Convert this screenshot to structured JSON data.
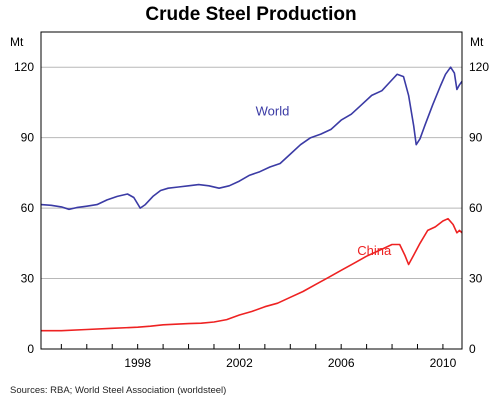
{
  "chart_data": {
    "type": "line",
    "title": "Crude Steel Production",
    "ylabel_left": "Mt",
    "ylabel_right": "Mt",
    "ylim": [
      0,
      135
    ],
    "yticks": [
      0,
      30,
      60,
      90,
      120
    ],
    "xlim": [
      1994.2,
      2010.75
    ],
    "xticks": [
      1998,
      2002,
      2006,
      2010
    ],
    "grid": "horizontal",
    "series": [
      {
        "name": "World",
        "color": "#3b3ba5",
        "points": [
          [
            1994.2,
            61.5
          ],
          [
            1994.6,
            61.2
          ],
          [
            1995.0,
            60.5
          ],
          [
            1995.3,
            59.5
          ],
          [
            1995.6,
            60.2
          ],
          [
            1996.0,
            60.8
          ],
          [
            1996.4,
            61.5
          ],
          [
            1996.8,
            63.5
          ],
          [
            1997.2,
            65.0
          ],
          [
            1997.6,
            66.0
          ],
          [
            1997.85,
            64.5
          ],
          [
            1998.1,
            60.0
          ],
          [
            1998.3,
            61.5
          ],
          [
            1998.6,
            65.0
          ],
          [
            1998.9,
            67.5
          ],
          [
            1999.2,
            68.5
          ],
          [
            1999.6,
            69.0
          ],
          [
            2000.0,
            69.5
          ],
          [
            2000.4,
            70.0
          ],
          [
            2000.8,
            69.5
          ],
          [
            2001.2,
            68.5
          ],
          [
            2001.6,
            69.5
          ],
          [
            2002.0,
            71.5
          ],
          [
            2002.4,
            74.0
          ],
          [
            2002.8,
            75.5
          ],
          [
            2003.2,
            77.5
          ],
          [
            2003.6,
            79.0
          ],
          [
            2004.0,
            83.0
          ],
          [
            2004.4,
            87.0
          ],
          [
            2004.8,
            90.0
          ],
          [
            2005.2,
            91.5
          ],
          [
            2005.6,
            93.5
          ],
          [
            2006.0,
            97.5
          ],
          [
            2006.4,
            100.0
          ],
          [
            2006.8,
            104.0
          ],
          [
            2007.2,
            108.0
          ],
          [
            2007.6,
            110.0
          ],
          [
            2007.9,
            113.5
          ],
          [
            2008.2,
            117.0
          ],
          [
            2008.45,
            116.0
          ],
          [
            2008.65,
            108.0
          ],
          [
            2008.85,
            95.0
          ],
          [
            2008.95,
            87.0
          ],
          [
            2009.1,
            89.5
          ],
          [
            2009.3,
            95.5
          ],
          [
            2009.6,
            104.0
          ],
          [
            2009.9,
            112.0
          ],
          [
            2010.1,
            117.0
          ],
          [
            2010.3,
            120.0
          ],
          [
            2010.45,
            117.5
          ],
          [
            2010.55,
            110.5
          ],
          [
            2010.65,
            112.5
          ],
          [
            2010.75,
            114.0
          ]
        ]
      },
      {
        "name": "China",
        "color": "#ee2222",
        "points": [
          [
            1994.2,
            7.8
          ],
          [
            1995.0,
            7.8
          ],
          [
            1996.0,
            8.3
          ],
          [
            1997.0,
            8.8
          ],
          [
            1998.0,
            9.3
          ],
          [
            1998.5,
            9.7
          ],
          [
            1999.0,
            10.3
          ],
          [
            2000.0,
            10.8
          ],
          [
            2000.5,
            11.0
          ],
          [
            2001.0,
            11.5
          ],
          [
            2001.5,
            12.5
          ],
          [
            2002.0,
            14.5
          ],
          [
            2002.5,
            16.0
          ],
          [
            2003.0,
            18.0
          ],
          [
            2003.5,
            19.5
          ],
          [
            2004.0,
            22.0
          ],
          [
            2004.5,
            24.5
          ],
          [
            2005.0,
            27.5
          ],
          [
            2005.5,
            30.5
          ],
          [
            2006.0,
            33.5
          ],
          [
            2006.5,
            36.5
          ],
          [
            2007.0,
            39.5
          ],
          [
            2007.5,
            42.0
          ],
          [
            2008.0,
            44.5
          ],
          [
            2008.3,
            44.5
          ],
          [
            2008.5,
            40.0
          ],
          [
            2008.65,
            36.0
          ],
          [
            2008.85,
            40.0
          ],
          [
            2009.1,
            45.0
          ],
          [
            2009.4,
            50.5
          ],
          [
            2009.7,
            52.0
          ],
          [
            2010.0,
            54.5
          ],
          [
            2010.2,
            55.5
          ],
          [
            2010.4,
            53.0
          ],
          [
            2010.55,
            49.5
          ],
          [
            2010.65,
            50.5
          ],
          [
            2010.75,
            49.5
          ]
        ]
      }
    ],
    "annotations": [
      {
        "text": "World",
        "x": 2003.3,
        "y": 99.5,
        "color": "#3b3ba5"
      },
      {
        "text": "China",
        "x": 2007.3,
        "y": 40.0,
        "color": "#ee2222"
      }
    ],
    "source": "Sources: RBA; World Steel Association (worldsteel)"
  }
}
